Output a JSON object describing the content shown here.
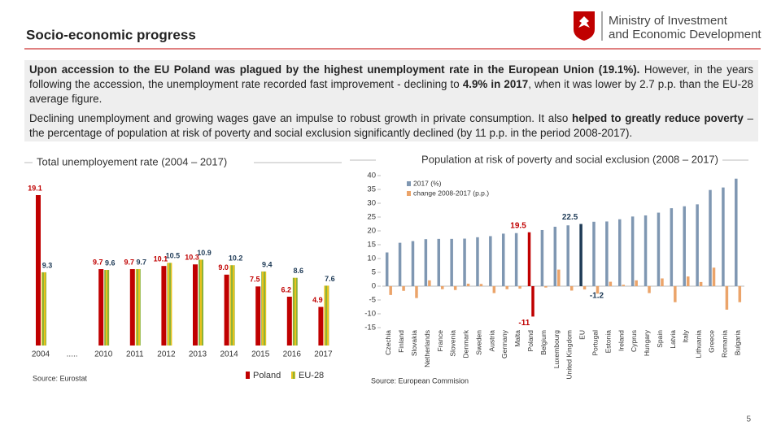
{
  "header": {
    "title": "Socio-economic progress",
    "logo_lines": [
      "Ministry of Investment",
      "and Economic Development"
    ]
  },
  "paragraphs": [
    [
      {
        "text": "Upon accession to the EU Poland was plagued by the highest unemployment rate in the European Union (19.1%).",
        "bold": true
      },
      {
        "text": " However, in the years following the accession, the unemployment rate recorded fast improvement - declining to ",
        "bold": false
      },
      {
        "text": "4.9% in 2017",
        "bold": true
      },
      {
        "text": ", when it was lower by 2.7 p.p. than the EU-28 average figure.",
        "bold": false
      }
    ],
    [
      {
        "text": "Declining unemployment and growing wages gave an impulse to robust growth in private consumption. It also ",
        "bold": false
      },
      {
        "text": "helped to greatly reduce poverty",
        "bold": true
      },
      {
        "text": " – the percentage of population at risk of poverty and social exclusion significantly declined (by 11 p.p. in the period 2008-2017).",
        "bold": false
      }
    ]
  ],
  "chart_data": [
    {
      "type": "bar",
      "title": "Total unemployement rate (2004 – 2017)",
      "source": "Source: Eurostat",
      "categories": [
        "2004",
        ".....",
        "2010",
        "2011",
        "2012",
        "2013",
        "2014",
        "2015",
        "2016",
        "2017"
      ],
      "series": [
        {
          "name": "Poland",
          "color": "#c00000",
          "values": [
            19.1,
            null,
            9.7,
            9.7,
            10.1,
            10.3,
            9.0,
            7.5,
            6.2,
            4.9
          ],
          "value_labels": [
            "19.1",
            null,
            "9.7",
            "9.7",
            "10.1",
            "10.3",
            "9.0",
            "7.5",
            "6.2",
            "4.9"
          ]
        },
        {
          "name": "EU-28",
          "color": "#8db33a",
          "values": [
            9.3,
            null,
            9.6,
            9.7,
            10.5,
            10.9,
            10.2,
            9.4,
            8.6,
            7.6
          ],
          "value_labels": [
            "9.3",
            null,
            "9.6",
            "9.7",
            "10.5",
            "10.9",
            "10.2",
            "9.4",
            "8.6",
            "7.6"
          ]
        }
      ]
    },
    {
      "type": "bar",
      "title": "Population at risk of poverty and social exclusion (2008 – 2017)",
      "source": "Source: European Commision",
      "categories": [
        "Czechia",
        "Finland",
        "Slovakia",
        "Netherlands",
        "France",
        "Slovenia",
        "Denmark",
        "Sweden",
        "Austria",
        "Germany",
        "Malta",
        "Poland",
        "Belgium",
        "Luxembourg",
        "United Kingdom",
        "EU",
        "Portugal",
        "Estonia",
        "Ireland",
        "Cyprus",
        "Hungary",
        "Spain",
        "Latvia",
        "Italy",
        "Lithuania",
        "Greece",
        "Romania",
        "Bulgaria"
      ],
      "ylim": [
        -15,
        40
      ],
      "yticks": [
        -15,
        -10,
        -5,
        0,
        5,
        10,
        15,
        20,
        25,
        30,
        35,
        40
      ],
      "highlights": [
        {
          "category": "Poland",
          "color": "#c00000"
        },
        {
          "category": "EU",
          "color": "#1f3b57"
        }
      ],
      "series": [
        {
          "name": "2017 (%)",
          "color": "#7f97b2",
          "values": [
            12.2,
            15.7,
            16.3,
            17.0,
            17.1,
            17.1,
            17.2,
            17.7,
            18.1,
            19.0,
            19.2,
            19.5,
            20.3,
            21.5,
            22.0,
            22.5,
            23.3,
            23.4,
            24.2,
            25.2,
            25.6,
            26.6,
            28.2,
            28.9,
            29.6,
            34.8,
            35.7,
            38.9
          ],
          "value_labels": [
            null,
            null,
            null,
            null,
            null,
            null,
            null,
            null,
            null,
            null,
            null,
            "19.5",
            null,
            null,
            null,
            "22.5",
            null,
            null,
            null,
            null,
            null,
            null,
            null,
            null,
            null,
            null,
            null,
            null
          ]
        },
        {
          "name": "change 2008-2017 (p.p.)",
          "color": "#eba46a",
          "values": [
            -3.2,
            -1.7,
            -4.3,
            2.1,
            -1.1,
            -1.4,
            0.9,
            0.8,
            -2.5,
            -1.1,
            -0.9,
            -11,
            -0.5,
            6.0,
            -1.6,
            -1.2,
            -2.7,
            1.6,
            0.5,
            2.1,
            -2.5,
            2.8,
            -5.8,
            3.5,
            1.5,
            6.7,
            -8.5,
            -5.8
          ],
          "value_labels": [
            null,
            null,
            null,
            null,
            null,
            null,
            null,
            null,
            null,
            null,
            null,
            "-11",
            null,
            null,
            null,
            "-1.2",
            null,
            null,
            null,
            null,
            null,
            null,
            null,
            null,
            null,
            null,
            null,
            null
          ]
        }
      ]
    }
  ],
  "page_number": "5"
}
